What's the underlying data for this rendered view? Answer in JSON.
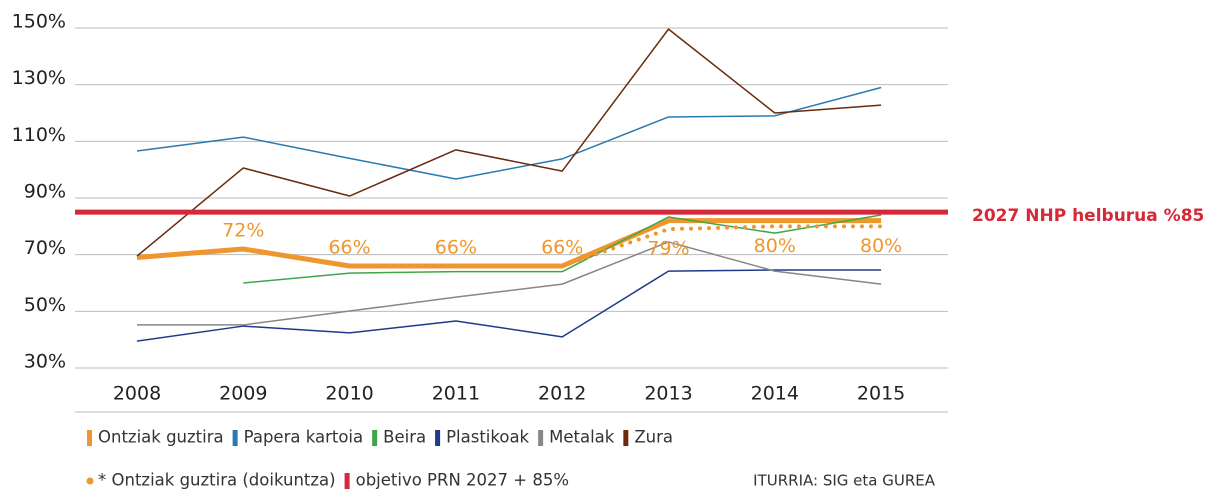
{
  "chart_data": {
    "type": "line",
    "categories": [
      "2008",
      "2009",
      "2010",
      "2011",
      "2012",
      "2013",
      "2014",
      "2015"
    ],
    "ylim": [
      30,
      150
    ],
    "yticks": [
      {
        "value": 30,
        "label": "30%"
      },
      {
        "value": 50,
        "label": "50%"
      },
      {
        "value": 70,
        "label": "70%"
      },
      {
        "value": 90,
        "label": "90%"
      },
      {
        "value": 110,
        "label": "110%"
      },
      {
        "value": 130,
        "label": "130%"
      },
      {
        "value": 150,
        "label": "150%"
      }
    ],
    "grid": true,
    "series": [
      {
        "name": "Ontziak guztira",
        "color": "#f0962e",
        "width": 5,
        "values": [
          69,
          72,
          66,
          66,
          66,
          82,
          82,
          82
        ],
        "value_labels": [
          null,
          "72%",
          "66%",
          "66%",
          "66%",
          null,
          null,
          null
        ]
      },
      {
        "name": "Papera kartoia",
        "color": "#2a7ab0",
        "width": 1.5,
        "values": [
          106.6,
          111.5,
          104,
          96.7,
          103.8,
          118.6,
          119,
          129
        ]
      },
      {
        "name": "Beira",
        "color": "#3ca84a",
        "width": 1.5,
        "values": [
          null,
          60,
          63.5,
          64,
          64,
          83.3,
          77.6,
          84
        ]
      },
      {
        "name": "Plastikoak",
        "color": "#1f3a8a",
        "width": 1.5,
        "values": [
          39.5,
          44.8,
          42.4,
          46.6,
          41,
          64.2,
          64.6,
          64.6
        ]
      },
      {
        "name": "Metalak",
        "color": "#878787",
        "width": 1.5,
        "values": [
          45.2,
          45.2,
          50.1,
          55,
          59.6,
          74.5,
          64.2,
          59.6
        ]
      },
      {
        "name": "Zura",
        "color": "#6b2a0e",
        "width": 1.5,
        "values": [
          69.5,
          100.6,
          90.7,
          107,
          99.5,
          149.6,
          120,
          122.8
        ]
      },
      {
        "name": "* Ontziak guztira (doikuntza)",
        "color": "#f0962e",
        "width": 4,
        "style": "dotted",
        "values": [
          null,
          null,
          null,
          null,
          66,
          79,
          80,
          80
        ],
        "value_labels": [
          null,
          null,
          null,
          null,
          null,
          "79%",
          "80%",
          "80%"
        ]
      },
      {
        "name": "objetivo PRN 2027 + 85%",
        "color": "#d62839",
        "width": 5,
        "style": "target",
        "values": [
          85,
          85,
          85,
          85,
          85,
          85,
          85,
          85
        ]
      }
    ],
    "annotation": "2027 NHP helburua %85",
    "source": "ITURRIA: SIG eta GUREA"
  }
}
